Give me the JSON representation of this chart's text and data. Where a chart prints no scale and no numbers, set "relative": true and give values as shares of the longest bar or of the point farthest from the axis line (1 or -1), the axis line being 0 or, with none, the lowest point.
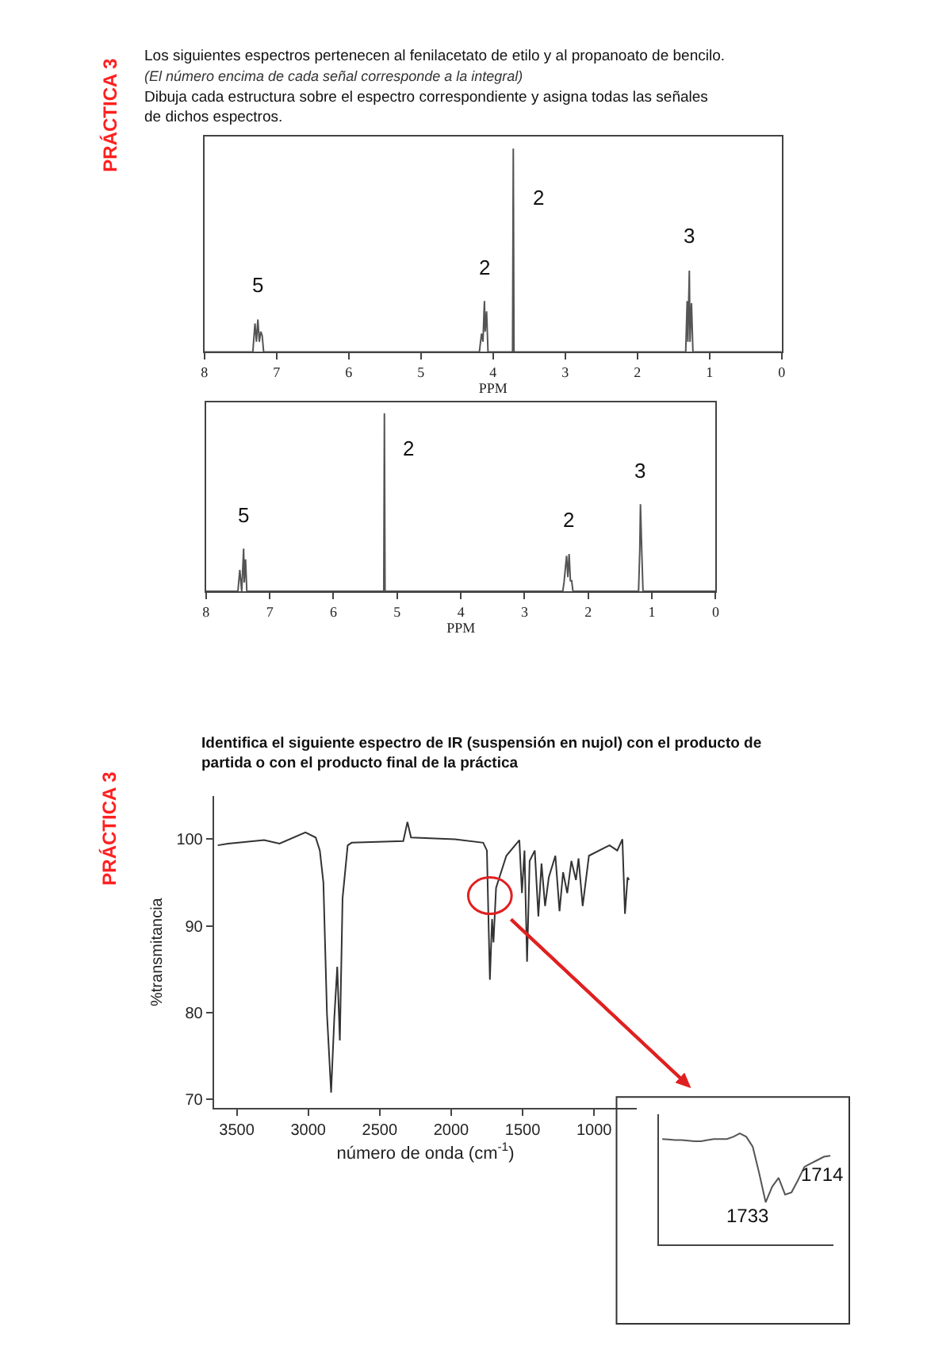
{
  "chart_data": [
    {
      "type": "line",
      "relative": true,
      "title": "Los siguientes espectros pertenecen al fenilacetato de etilo y al propanoato de bencilo.",
      "subtitle": "(El número encima de cada señal corresponde a la integral)",
      "xlabel": "PPM",
      "xlim": [
        8,
        0
      ],
      "xticks": [
        8,
        7,
        6,
        5,
        4,
        3,
        2,
        1,
        0
      ],
      "series": [
        {
          "color": "#555555",
          "x": [
            8,
            7.33,
            7.3,
            7.28,
            7.26,
            7.24,
            7.22,
            7.2,
            7.18,
            4.19,
            4.16,
            4.14,
            4.12,
            4.11,
            4.09,
            4.07,
            3.73,
            3.72,
            3.71,
            1.33,
            1.31,
            1.3,
            1.28,
            1.27,
            1.25,
            1.23,
            0
          ],
          "values": [
            0,
            0,
            0.14,
            0.05,
            0.16,
            0.05,
            0.1,
            0.08,
            0,
            0,
            0.09,
            0.05,
            0.25,
            0.1,
            0.2,
            0,
            0,
            1,
            0,
            0,
            0.25,
            0.05,
            0.4,
            0.05,
            0.24,
            0,
            0
          ]
        }
      ],
      "annotations": [
        "Dibuja cada estructura sobre el espectro correspondiente y asigna todas las señales de dichos espectros.",
        "PRÁCTICA 3",
        {
          "text": "5",
          "x": 7.26,
          "y": 0.16
        },
        {
          "text": "2",
          "x": 4.12,
          "y": 0.25
        },
        {
          "text": "2",
          "x": 3.72,
          "y": 0.76
        },
        {
          "text": "3",
          "x": 1.28,
          "y": 0.4
        }
      ]
    },
    {
      "type": "line",
      "relative": true,
      "xlabel": "PPM",
      "xlim": [
        8,
        0
      ],
      "xticks": [
        8,
        7,
        6,
        5,
        4,
        3,
        2,
        1,
        0
      ],
      "series": [
        {
          "color": "#555555",
          "x": [
            8,
            7.5,
            7.47,
            7.44,
            7.41,
            7.4,
            7.38,
            7.36,
            5.21,
            5.2,
            5.19,
            2.4,
            2.38,
            2.34,
            2.32,
            2.3,
            2.28,
            2.26,
            2.24,
            1.21,
            1.19,
            1.18,
            1.16,
            1.14,
            0
          ],
          "values": [
            0,
            0,
            0.12,
            0,
            0.24,
            0.05,
            0.18,
            0,
            0,
            1,
            0,
            0,
            0.05,
            0.2,
            0.08,
            0.21,
            0.06,
            0.06,
            0,
            0,
            0.24,
            0.49,
            0.23,
            0,
            0
          ]
        }
      ],
      "annotations": [
        {
          "text": "5",
          "x": 7.41,
          "y": 0.24
        },
        {
          "text": "2",
          "x": 5.2,
          "y": 0.8
        },
        {
          "text": "2",
          "x": 2.3,
          "y": 0.21
        },
        {
          "text": "3",
          "x": 1.18,
          "y": 0.49
        }
      ]
    },
    {
      "type": "line",
      "title": "Identifica el siguiente espectro de IR (suspensión en nujol) con el producto de partida o con el producto final de la práctica",
      "xlabel": "número de onda (cm$^{-1}$)",
      "ylabel": "%transmitancia",
      "xlim": [
        3660,
        700
      ],
      "xticks": [
        3500,
        3000,
        2500,
        2000,
        1500,
        1000
      ],
      "ylim": [
        69,
        105
      ],
      "yticks": [
        70,
        80,
        90,
        100
      ],
      "series": [
        {
          "color": "#333333",
          "x": [
            3633,
            3561,
            3489,
            3309,
            3201,
            3020,
            2948,
            2919,
            2894,
            2869,
            2840,
            2818,
            2797,
            2779,
            2760,
            2724,
            2696,
            2335,
            2306,
            2281,
            1974,
            1776,
            1750,
            1740,
            1729,
            1714,
            1704,
            1686,
            1614,
            1523,
            1505,
            1487,
            1469,
            1451,
            1415,
            1390,
            1368,
            1343,
            1317,
            1271,
            1242,
            1217,
            1188,
            1159,
            1127,
            1109,
            1080,
            1036,
            892,
            838,
            802,
            784,
            766,
            755
          ],
          "values": [
            99.3,
            99.5,
            99.6,
            99.9,
            99.5,
            100.8,
            100.2,
            98.7,
            95.0,
            79.9,
            70.8,
            79.3,
            85.3,
            76.8,
            93.2,
            99.3,
            99.6,
            99.8,
            102.0,
            100.2,
            100,
            99.6,
            98.7,
            91.4,
            83.8,
            90.8,
            88.1,
            94.4,
            98.1,
            99.9,
            93.8,
            98.7,
            85.9,
            97.5,
            98.7,
            91.1,
            97.2,
            92.3,
            95.6,
            98.1,
            91.7,
            96.2,
            93.8,
            97.5,
            95.3,
            97.8,
            92.3,
            98.1,
            99.3,
            98.7,
            100,
            91.4,
            95.6,
            95.3
          ]
        }
      ],
      "annotations": [
        "PRÁCTICA 3"
      ]
    },
    {
      "type": "line",
      "relative": true,
      "categories": [
        null,
        null,
        null,
        null,
        null,
        null,
        null,
        null,
        null,
        null,
        null,
        null,
        null,
        null,
        null,
        null,
        null,
        null,
        null,
        null,
        null,
        null,
        null,
        null,
        null,
        null,
        null
      ],
      "series": [
        {
          "color": "#555555",
          "values": [
            0.95,
            0.945,
            0.94,
            0.94,
            0.935,
            0.93,
            0.93,
            0.94,
            0.95,
            0.95,
            0.95,
            0.97,
            1,
            0.97,
            0.88,
            0.64,
            0.38,
            0.52,
            0.6,
            0.45,
            0.47,
            0.58,
            0.7,
            0.73,
            0.76,
            0.79,
            0.8
          ]
        }
      ],
      "annotations": [
        "1733",
        "1714"
      ]
    }
  ]
}
